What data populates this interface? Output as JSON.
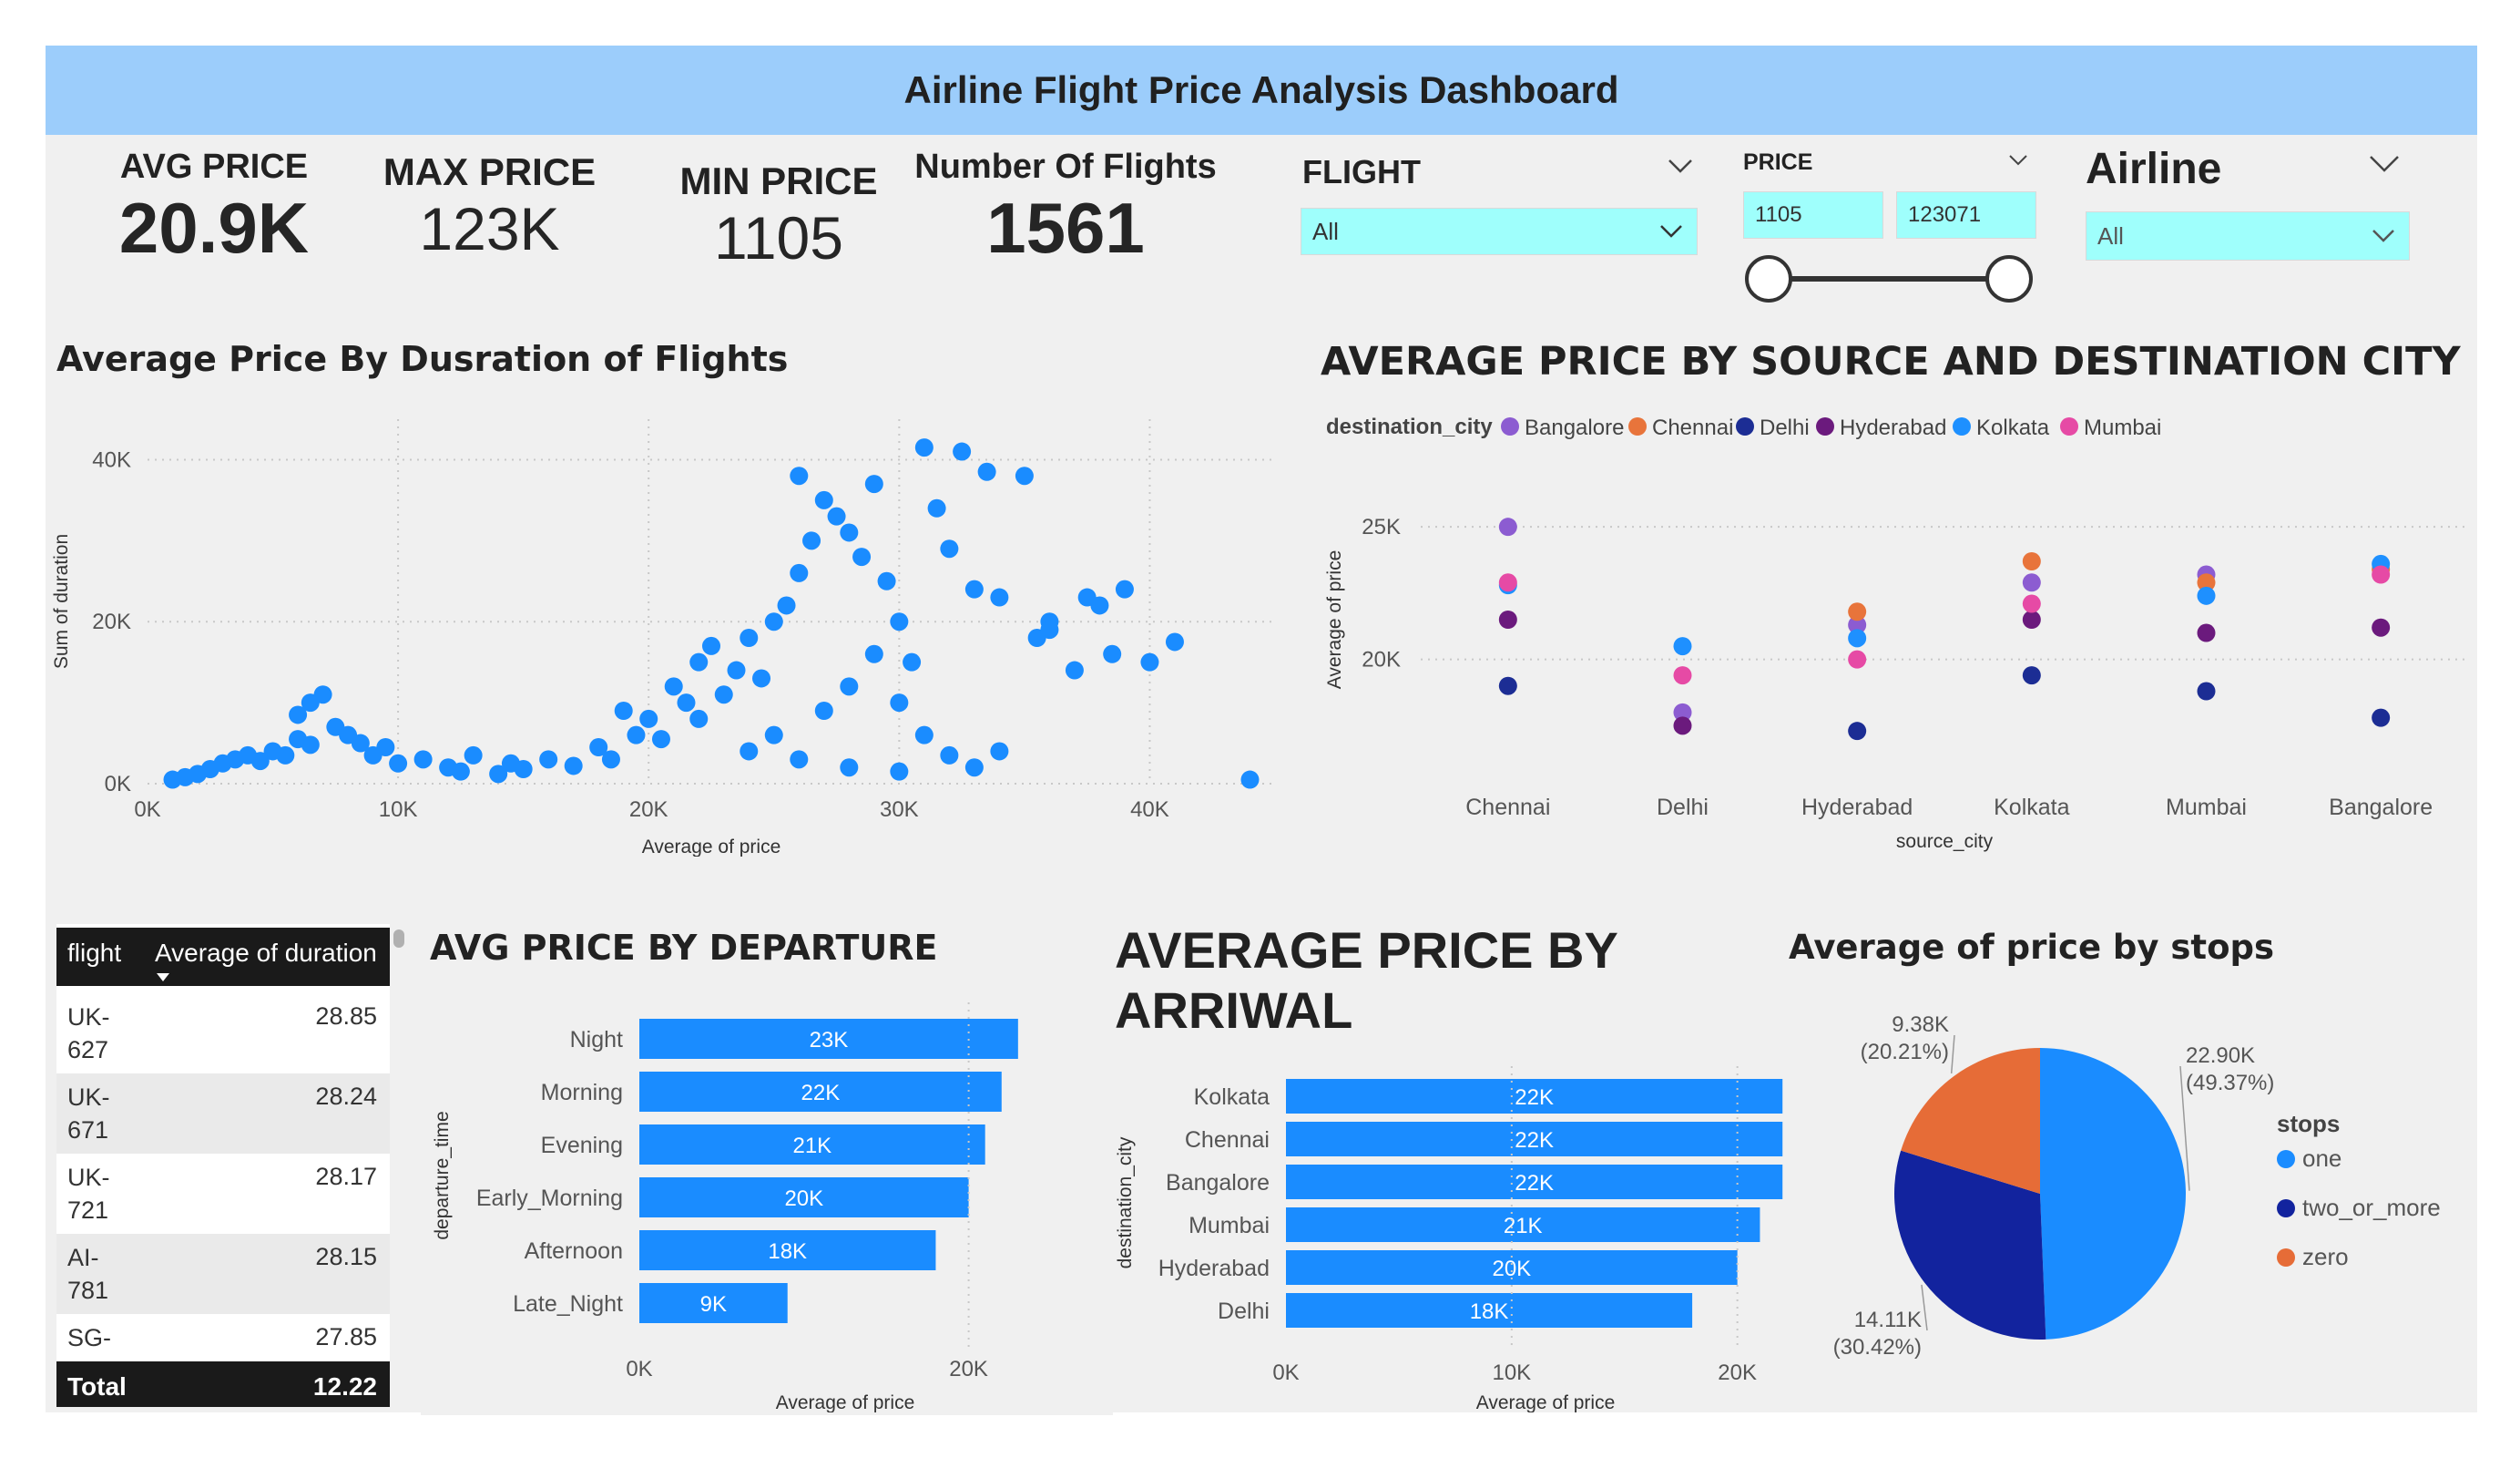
{
  "title": "Airline Flight Price Analysis Dashboard",
  "kpis": [
    {
      "label": "AVG PRICE",
      "value": "20.9K"
    },
    {
      "label": "MAX PRICE",
      "value": "123K"
    },
    {
      "label": "MIN PRICE",
      "value": "1105"
    },
    {
      "label": "Number Of Flights",
      "value": "1561"
    }
  ],
  "slicers": {
    "flight": {
      "label": "FLIGHT",
      "value": "All"
    },
    "price": {
      "label": "PRICE",
      "min": "1105",
      "max": "123071"
    },
    "airline": {
      "label": "Airline",
      "value": "All"
    }
  },
  "scatter": {
    "title": "Average Price By Dusration of Flights",
    "xlabel": "Average of price",
    "ylabel": "Sum of duration",
    "xticks": [
      "0K",
      "10K",
      "20K",
      "30K",
      "40K"
    ],
    "yticks": [
      "0K",
      "20K",
      "40K"
    ],
    "color": "#1a8cff"
  },
  "city_chart": {
    "title": "AVERAGE PRICE BY SOURCE AND DESTINATION CITY",
    "legend_title": "destination_city",
    "legend": [
      {
        "name": "Bangalore",
        "color": "#8c5cd1"
      },
      {
        "name": "Chennai",
        "color": "#e8743b"
      },
      {
        "name": "Delhi",
        "color": "#1c2d94"
      },
      {
        "name": "Hyderabad",
        "color": "#6b1a7d"
      },
      {
        "name": "Kolkata",
        "color": "#1e90ff"
      },
      {
        "name": "Mumbai",
        "color": "#e64aa5"
      }
    ],
    "xlabel": "source_city",
    "ylabel": "Average of price",
    "yticks": [
      "20K",
      "25K"
    ],
    "categories": [
      "Chennai",
      "Delhi",
      "Hyderabad",
      "Kolkata",
      "Mumbai",
      "Bangalore"
    ]
  },
  "table": {
    "col1": "flight",
    "col2": "Average of duration",
    "rows": [
      {
        "flight": "UK-627",
        "value": "28.85"
      },
      {
        "flight": "UK-671",
        "value": "28.24"
      },
      {
        "flight": "UK-721",
        "value": "28.17"
      },
      {
        "flight": "AI-781",
        "value": "28.15"
      },
      {
        "flight": "SG-",
        "value": "27.85"
      }
    ],
    "total_label": "Total",
    "total_value": "12.22"
  },
  "departure": {
    "title": "AVG PRICE BY DEPARTURE",
    "ylabel": "departure_time",
    "xlabel": "Average of price",
    "xticks": [
      "0K",
      "20K"
    ]
  },
  "arrival": {
    "title_line1": "AVERAGE PRICE BY",
    "title_line2": "ARRIWAL",
    "ylabel": "destination_city",
    "xlabel": "Average of price",
    "xticks": [
      "0K",
      "10K",
      "20K"
    ]
  },
  "stops": {
    "title": "Average of price by stops",
    "legend_title": "stops",
    "slices": [
      {
        "name": "one",
        "value": 22.9,
        "label": "22.90K",
        "pct": "(49.37%)",
        "color": "#1a8cff"
      },
      {
        "name": "two_or_more",
        "value": 14.11,
        "label": "14.11K",
        "pct": "(30.42%)",
        "color": "#12239e"
      },
      {
        "name": "zero",
        "value": 9.38,
        "label": "9.38K",
        "pct": "(20.21%)",
        "color": "#e66c37"
      }
    ]
  },
  "chart_data": [
    {
      "type": "scatter",
      "title": "Average Price By Dusration of Flights",
      "xlabel": "Average of price",
      "ylabel": "Sum of duration",
      "xlim": [
        0,
        45000
      ],
      "ylim": [
        0,
        45000
      ],
      "points": [
        [
          1000,
          500
        ],
        [
          1500,
          800
        ],
        [
          2000,
          1200
        ],
        [
          2500,
          1800
        ],
        [
          3000,
          2500
        ],
        [
          3500,
          3000
        ],
        [
          4000,
          3500
        ],
        [
          4500,
          2800
        ],
        [
          5000,
          4000
        ],
        [
          5500,
          3500
        ],
        [
          6000,
          5500
        ],
        [
          6500,
          4800
        ],
        [
          6000,
          8500
        ],
        [
          6500,
          10000
        ],
        [
          7000,
          11000
        ],
        [
          7500,
          7000
        ],
        [
          8000,
          6000
        ],
        [
          8500,
          5000
        ],
        [
          9000,
          3500
        ],
        [
          9500,
          4500
        ],
        [
          10000,
          2500
        ],
        [
          11000,
          3000
        ],
        [
          12000,
          2000
        ],
        [
          12500,
          1500
        ],
        [
          13000,
          3500
        ],
        [
          14000,
          1200
        ],
        [
          14500,
          2500
        ],
        [
          15000,
          1800
        ],
        [
          16000,
          3000
        ],
        [
          17000,
          2200
        ],
        [
          18000,
          4500
        ],
        [
          18500,
          3000
        ],
        [
          19000,
          9000
        ],
        [
          19500,
          6000
        ],
        [
          20000,
          8000
        ],
        [
          20500,
          5500
        ],
        [
          21000,
          12000
        ],
        [
          21500,
          10000
        ],
        [
          22000,
          15000
        ],
        [
          22500,
          17000
        ],
        [
          22000,
          8000
        ],
        [
          23000,
          11000
        ],
        [
          23500,
          14000
        ],
        [
          24000,
          18000
        ],
        [
          24500,
          13000
        ],
        [
          25000,
          20000
        ],
        [
          25500,
          22000
        ],
        [
          26000,
          26000
        ],
        [
          26500,
          30000
        ],
        [
          26000,
          38000
        ],
        [
          27000,
          35000
        ],
        [
          27500,
          33000
        ],
        [
          28000,
          31000
        ],
        [
          28500,
          28000
        ],
        [
          29000,
          37000
        ],
        [
          29500,
          25000
        ],
        [
          30000,
          20000
        ],
        [
          30500,
          15000
        ],
        [
          31000,
          41500
        ],
        [
          31500,
          34000
        ],
        [
          32000,
          29000
        ],
        [
          32500,
          41000
        ],
        [
          33000,
          24000
        ],
        [
          33500,
          38500
        ],
        [
          34000,
          23000
        ],
        [
          35000,
          38000
        ],
        [
          35500,
          18000
        ],
        [
          36000,
          20000
        ],
        [
          37000,
          14000
        ],
        [
          37500,
          23000
        ],
        [
          38000,
          22000
        ],
        [
          38500,
          16000
        ],
        [
          39000,
          24000
        ],
        [
          40000,
          15000
        ],
        [
          41000,
          17500
        ],
        [
          25000,
          6000
        ],
        [
          27000,
          9000
        ],
        [
          28000,
          12000
        ],
        [
          29000,
          16000
        ],
        [
          30000,
          10000
        ],
        [
          31000,
          6000
        ],
        [
          24000,
          4000
        ],
        [
          26000,
          3000
        ],
        [
          28000,
          2000
        ],
        [
          30000,
          1500
        ],
        [
          32000,
          3500
        ],
        [
          33000,
          2000
        ],
        [
          34000,
          4000
        ],
        [
          44000,
          500
        ],
        [
          36000,
          19000
        ]
      ]
    },
    {
      "type": "scatter",
      "title": "AVERAGE PRICE BY SOURCE AND DESTINATION CITY",
      "xlabel": "source_city",
      "ylabel": "Average of price",
      "categories": [
        "Chennai",
        "Delhi",
        "Hyderabad",
        "Kolkata",
        "Mumbai",
        "Bangalore"
      ],
      "ylim": [
        16000,
        27000
      ],
      "series": [
        {
          "name": "Bangalore",
          "values": [
            25000,
            18000,
            21300,
            22900,
            23200,
            null
          ]
        },
        {
          "name": "Chennai",
          "values": [
            null,
            null,
            21800,
            23700,
            22900,
            23400
          ]
        },
        {
          "name": "Delhi",
          "values": [
            19000,
            null,
            17300,
            19400,
            18800,
            17800
          ]
        },
        {
          "name": "Hyderabad",
          "values": [
            21500,
            17500,
            null,
            21500,
            21000,
            21200
          ]
        },
        {
          "name": "Kolkata",
          "values": [
            22800,
            20500,
            20800,
            null,
            22400,
            23600
          ]
        },
        {
          "name": "Mumbai",
          "values": [
            22900,
            19400,
            20000,
            22100,
            null,
            23200
          ]
        }
      ]
    },
    {
      "type": "bar",
      "title": "AVG PRICE BY DEPARTURE",
      "xlabel": "Average of price",
      "ylabel": "departure_time",
      "categories": [
        "Night",
        "Morning",
        "Evening",
        "Early_Morning",
        "Afternoon",
        "Late_Night"
      ],
      "values": [
        23000,
        22000,
        21000,
        20000,
        18000,
        9000
      ],
      "labels": [
        "23K",
        "22K",
        "21K",
        "20K",
        "18K",
        "9K"
      ],
      "xlim": [
        0,
        25000
      ]
    },
    {
      "type": "bar",
      "title": "AVERAGE PRICE BY ARRIWAL",
      "xlabel": "Average of price",
      "ylabel": "destination_city",
      "categories": [
        "Kolkata",
        "Chennai",
        "Bangalore",
        "Mumbai",
        "Hyderabad",
        "Delhi"
      ],
      "values": [
        22000,
        22000,
        22000,
        21000,
        20000,
        18000
      ],
      "labels": [
        "22K",
        "22K",
        "22K",
        "21K",
        "20K",
        "18K"
      ],
      "xlim": [
        0,
        23000
      ]
    },
    {
      "type": "pie",
      "title": "Average of price by stops",
      "categories": [
        "one",
        "two_or_more",
        "zero"
      ],
      "values": [
        22.9,
        14.11,
        9.38
      ]
    }
  ]
}
